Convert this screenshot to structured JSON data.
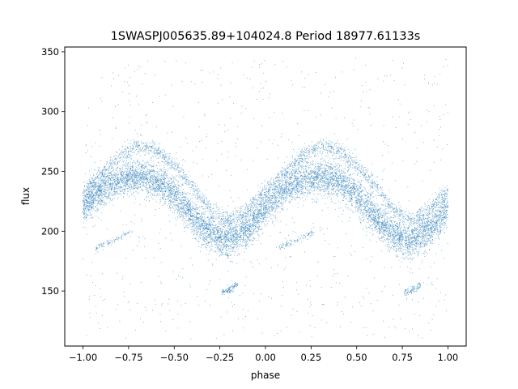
{
  "chart_data": {
    "type": "scatter",
    "title": "1SWASPJ005635.89+104024.8 Period 18977.61133s",
    "xlabel": "phase",
    "ylabel": "flux",
    "xlim": [
      -1.1,
      1.1
    ],
    "ylim": [
      104,
      354
    ],
    "x_ticks": [
      -1.0,
      -0.75,
      -0.5,
      -0.25,
      0.0,
      0.25,
      0.5,
      0.75,
      1.0
    ],
    "x_tick_labels": [
      "−1.00",
      "−0.75",
      "−0.50",
      "−0.25",
      "0.00",
      "0.25",
      "0.50",
      "0.75",
      "1.00"
    ],
    "y_ticks": [
      150,
      200,
      250,
      300,
      350
    ],
    "y_tick_labels": [
      "150",
      "200",
      "250",
      "300",
      "350"
    ],
    "grid": false,
    "legend": "none",
    "marker_color": "#1f77b4",
    "series": [
      {
        "description": "main folded light curve band (folded twice over phase -1 to 1)",
        "x_range": [
          -1.0,
          1.0
        ],
        "center_flux_by_phase": {
          "x": [
            0.0,
            0.05,
            0.1,
            0.15,
            0.2,
            0.25,
            0.3,
            0.35,
            0.4,
            0.45,
            0.5,
            0.55,
            0.6,
            0.65,
            0.7,
            0.75,
            0.8,
            0.85,
            0.9,
            0.95,
            1.0
          ],
          "y": [
            220,
            228,
            234,
            239,
            243,
            245,
            246,
            245,
            242,
            237,
            230,
            221,
            212,
            204,
            198,
            194,
            193,
            196,
            202,
            210,
            220
          ]
        },
        "band_half_width": 10
      },
      {
        "description": "upper thin branch",
        "x": [
          0.0,
          0.1,
          0.2,
          0.3,
          0.4,
          0.5,
          0.6,
          0.7,
          0.8,
          0.9,
          1.0
        ],
        "y": [
          232,
          248,
          263,
          272,
          268,
          255,
          238,
          218,
          210,
          218,
          235
        ]
      },
      {
        "description": "lower faint arcs",
        "x": [
          0.07,
          0.12,
          0.17,
          0.22,
          0.27
        ],
        "y": [
          186,
          189,
          192,
          196,
          200
        ]
      },
      {
        "description": "secondary faint arc near minimum",
        "x": [
          0.76,
          0.79,
          0.82,
          0.85
        ],
        "y": [
          149,
          150,
          152,
          156
        ]
      }
    ],
    "scatter_outliers_flux_range": [
      110,
      345
    ]
  }
}
